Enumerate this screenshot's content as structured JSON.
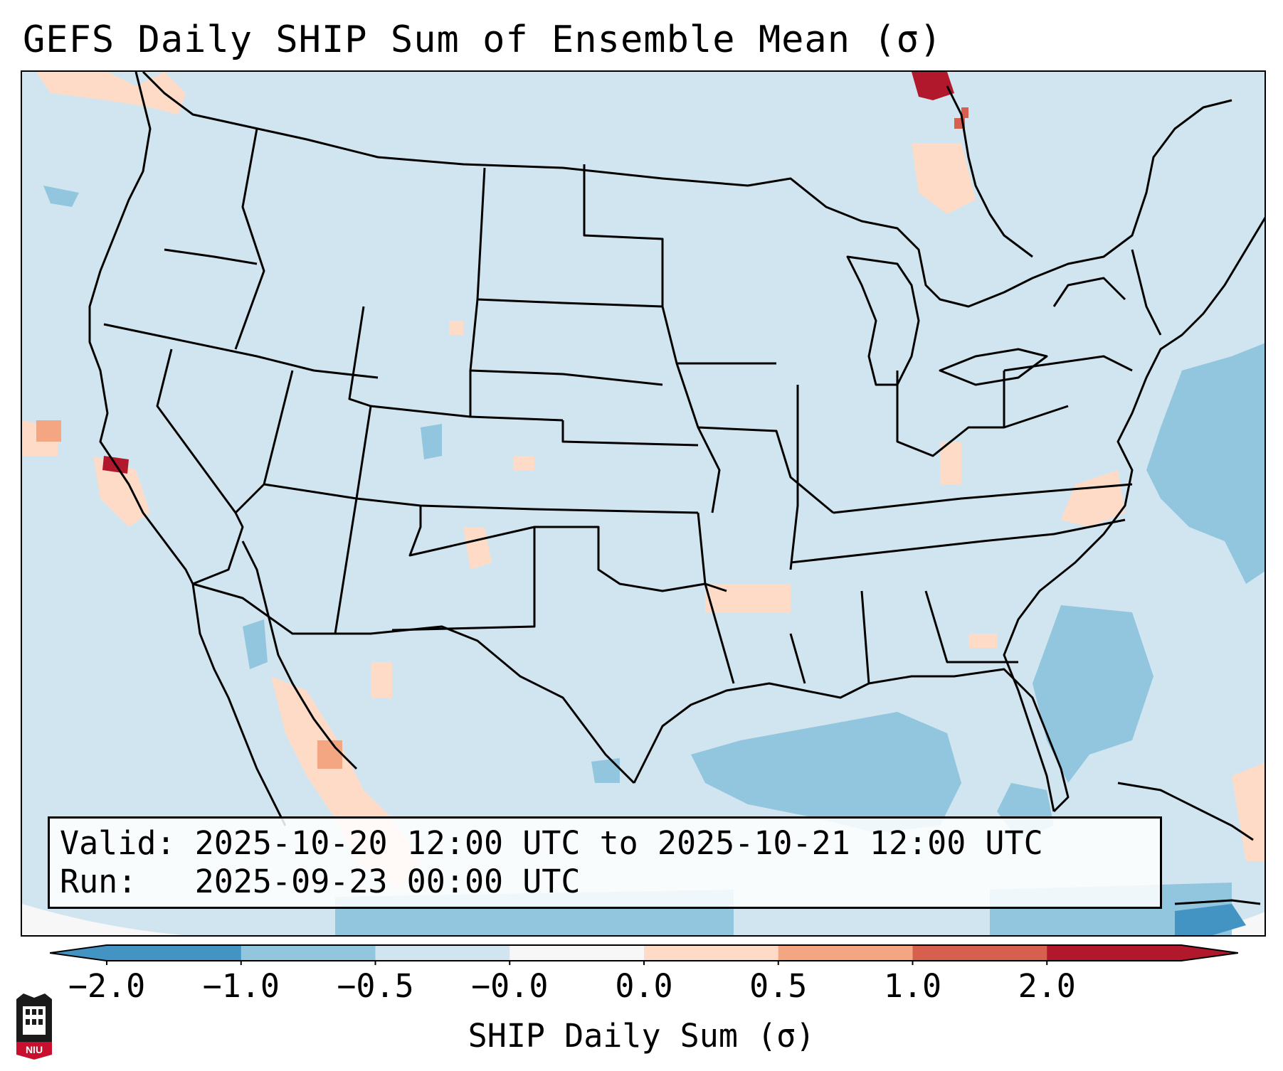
{
  "title": "GEFS Daily SHIP Sum of Ensemble Mean (σ)",
  "info": {
    "valid_line": "Valid: 2025-10-20 12:00 UTC to 2025-10-21 12:00 UTC",
    "run_line": "Run:   2025-09-23 00:00 UTC"
  },
  "colorbar": {
    "label": "SHIP Daily Sum (σ)",
    "ticks": [
      "−2.0",
      "−1.0",
      "−0.5",
      "−0.0",
      "0.0",
      "0.5",
      "1.0",
      "2.0"
    ],
    "colors": [
      "#4393c3",
      "#92c5de",
      "#d1e5f0",
      "#f7f7f7",
      "#fddbc7",
      "#f4a582",
      "#d6604d",
      "#b2182b"
    ],
    "extend": "both"
  },
  "map": {
    "background_color": "#d1e5f0",
    "region": "Contiguous United States",
    "projection": "Lambert Conformal"
  },
  "logo": {
    "text": "NIU"
  }
}
